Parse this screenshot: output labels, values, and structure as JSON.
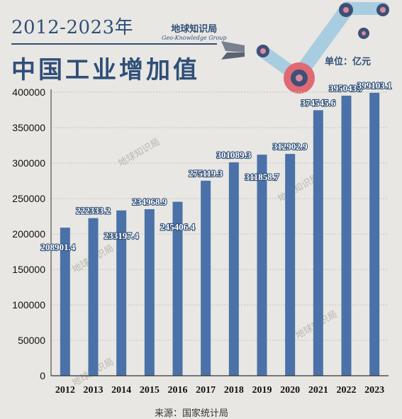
{
  "header": {
    "subtitle": "2012-2023年",
    "title": "中国工业增加值",
    "logo_cn": "地球知识局",
    "logo_en": "Geo-Knowledge Group",
    "unit": "单位：亿元"
  },
  "footer": {
    "source": "来源：国家统计局"
  },
  "watermark": "地球知识局",
  "colors": {
    "bar": "#4a72a8",
    "title": "#2f4f78",
    "background": "#e9e7e3",
    "gear": "#e06a73"
  },
  "chart_data": {
    "type": "bar",
    "categories": [
      "2012",
      "2013",
      "2014",
      "2015",
      "2016",
      "2017",
      "2018",
      "2019",
      "2020",
      "2021",
      "2022",
      "2023"
    ],
    "values": [
      208901.4,
      222333.2,
      233197.4,
      234968.9,
      245406.4,
      275119.3,
      301089.3,
      311858.7,
      312902.9,
      374545.6,
      395043.7,
      399103.1
    ],
    "labels": [
      "208901.4",
      "222333.2",
      "233197.4",
      "234968.9",
      "245406.4",
      "275119.3",
      "301089.3",
      "311858.7",
      "312902.9",
      "374545.6",
      "395043.7",
      "399103.1"
    ],
    "yticks": [
      "0",
      "50000",
      "100000",
      "150000",
      "200000",
      "250000",
      "300000",
      "350000",
      "400000"
    ],
    "ylim": [
      0,
      400000
    ],
    "grid": true,
    "title": "中国工业增加值",
    "ylabel": "单位：亿元"
  }
}
